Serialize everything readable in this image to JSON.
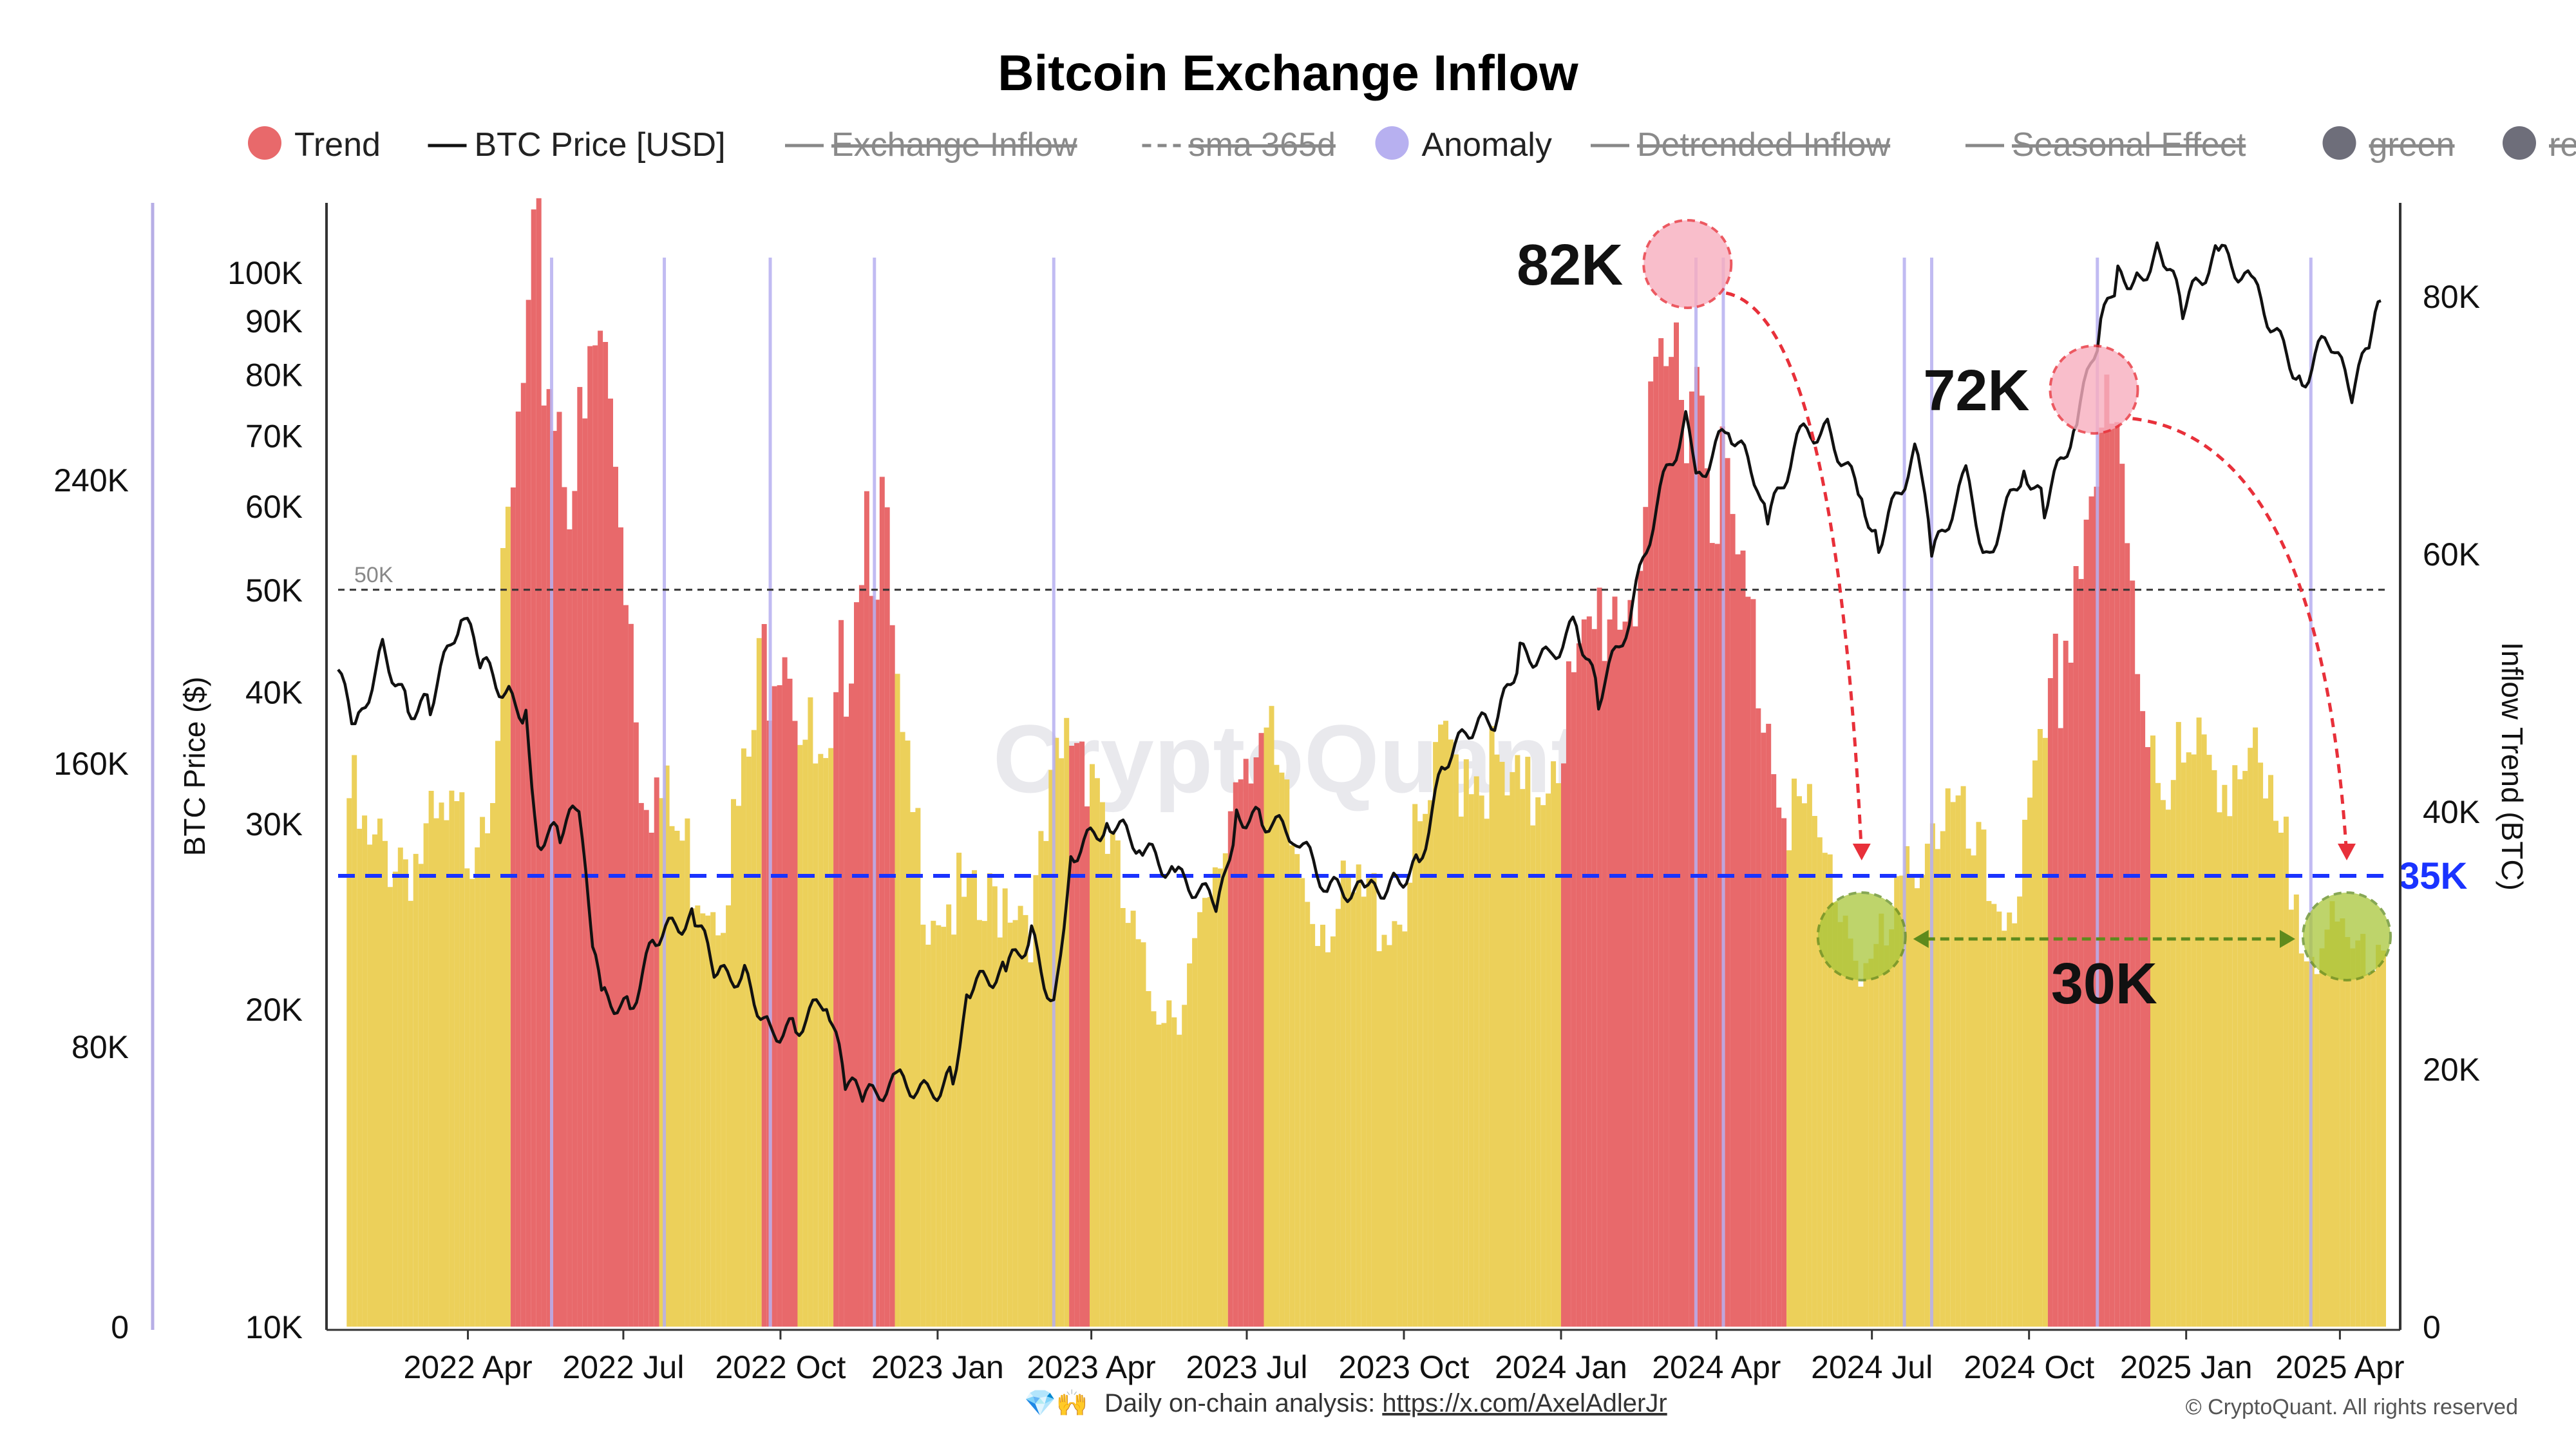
{
  "chart_data": {
    "type": "bar",
    "title": "Bitcoin Exchange Inflow",
    "legend": [
      {
        "label": "Trend",
        "style": "dot",
        "color": "#e8696b",
        "active": true
      },
      {
        "label": "BTC Price [USD]",
        "style": "line",
        "color": "#111111",
        "active": true
      },
      {
        "label": "Exchange Inflow",
        "style": "line",
        "color": "#888888",
        "active": false
      },
      {
        "label": "sma 365d",
        "style": "dash",
        "color": "#888888",
        "active": false
      },
      {
        "label": "Anomaly",
        "style": "dot",
        "color": "#b7b0f0",
        "active": true
      },
      {
        "label": "Detrended Inflow",
        "style": "line",
        "color": "#888888",
        "active": false
      },
      {
        "label": "Seasonal Effect",
        "style": "line",
        "color": "#888888",
        "active": false
      },
      {
        "label": "green",
        "style": "dot",
        "color": "#6e6e7a",
        "active": false
      },
      {
        "label": "red",
        "style": "dot",
        "color": "#6e6e7a",
        "active": false
      }
    ],
    "left_axis_outer": {
      "ticks": [
        "240K",
        "160K",
        "80K",
        "0"
      ],
      "values": [
        240000,
        160000,
        80000,
        0
      ]
    },
    "left_axis_price": {
      "label": "BTC Price ($)",
      "scale": "log",
      "ticks": [
        "100K",
        "90K",
        "80K",
        "70K",
        "60K",
        "50K",
        "40K",
        "30K",
        "20K",
        "10K"
      ],
      "values": [
        100000,
        90000,
        80000,
        70000,
        60000,
        50000,
        40000,
        30000,
        20000,
        10000
      ]
    },
    "right_axis": {
      "label": "Inflow Trend (BTC)",
      "range": [
        0,
        87000
      ],
      "ticks": [
        "80K",
        "60K",
        "40K",
        "20K",
        "0"
      ],
      "values": [
        80000,
        60000,
        40000,
        20000,
        0
      ]
    },
    "x_axis": {
      "ticks": [
        "2022 Apr",
        "2022 Jul",
        "2022 Oct",
        "2023 Jan",
        "2023 Apr",
        "2023 Jul",
        "2023 Oct",
        "2024 Jan",
        "2024 Apr",
        "2024 Jul",
        "2024 Oct",
        "2025 Jan",
        "2025 Apr"
      ],
      "dates": [
        "2022-04-01",
        "2022-07-01",
        "2022-10-01",
        "2023-01-01",
        "2023-04-01",
        "2023-07-01",
        "2023-10-01",
        "2024-01-01",
        "2024-04-01",
        "2024-07-01",
        "2024-10-01",
        "2025-01-01",
        "2025-04-01"
      ]
    },
    "inflow_trend_series": {
      "name": "Exchange Inflow Trend",
      "normal_color": "#ecd05a",
      "high_color": "#e8696b",
      "points": [
        [
          "2022-01-15",
          46000
        ],
        [
          "2022-02-01",
          38000
        ],
        [
          "2022-02-15",
          40000
        ],
        [
          "2022-03-01",
          39000
        ],
        [
          "2022-03-15",
          40000
        ],
        [
          "2022-04-01",
          41000
        ],
        [
          "2022-04-15",
          49000
        ],
        [
          "2022-05-01",
          75000
        ],
        [
          "2022-05-10",
          84000
        ],
        [
          "2022-05-25",
          75000
        ],
        [
          "2022-06-05",
          70000
        ],
        [
          "2022-06-15",
          82000
        ],
        [
          "2022-06-28",
          70000
        ],
        [
          "2022-07-10",
          48000
        ],
        [
          "2022-07-25",
          42000
        ],
        [
          "2022-08-10",
          38000
        ],
        [
          "2022-08-25",
          36000
        ],
        [
          "2022-09-10",
          45000
        ],
        [
          "2022-09-20",
          55000
        ],
        [
          "2022-10-01",
          61000
        ],
        [
          "2022-10-15",
          48000
        ],
        [
          "2022-10-28",
          42000
        ],
        [
          "2022-11-08",
          58000
        ],
        [
          "2022-11-18",
          70000
        ],
        [
          "2022-11-28",
          66000
        ],
        [
          "2022-12-10",
          45000
        ],
        [
          "2022-12-25",
          36000
        ],
        [
          "2023-01-10",
          35000
        ],
        [
          "2023-01-25",
          33000
        ],
        [
          "2023-02-10",
          37000
        ],
        [
          "2023-02-25",
          34000
        ],
        [
          "2023-03-10",
          44000
        ],
        [
          "2023-03-20",
          50000
        ],
        [
          "2023-04-01",
          48000
        ],
        [
          "2023-04-15",
          36000
        ],
        [
          "2023-05-01",
          28000
        ],
        [
          "2023-05-20",
          27000
        ],
        [
          "2023-06-10",
          34000
        ],
        [
          "2023-06-25",
          48000
        ],
        [
          "2023-07-05",
          51000
        ],
        [
          "2023-07-20",
          42000
        ],
        [
          "2023-08-05",
          36000
        ],
        [
          "2023-08-20",
          34000
        ],
        [
          "2023-09-10",
          35000
        ],
        [
          "2023-09-25",
          34000
        ],
        [
          "2023-10-10",
          40000
        ],
        [
          "2023-10-25",
          47000
        ],
        [
          "2023-11-10",
          48000
        ],
        [
          "2023-11-25",
          44000
        ],
        [
          "2023-12-10",
          42000
        ],
        [
          "2023-12-25",
          49000
        ],
        [
          "2024-01-10",
          52000
        ],
        [
          "2024-01-25",
          60000
        ],
        [
          "2024-02-10",
          62000
        ],
        [
          "2024-02-25",
          72000
        ],
        [
          "2024-03-05",
          79000
        ],
        [
          "2024-03-15",
          82000
        ],
        [
          "2024-03-28",
          74000
        ],
        [
          "2024-04-10",
          63000
        ],
        [
          "2024-04-25",
          54000
        ],
        [
          "2024-05-10",
          45000
        ],
        [
          "2024-05-25",
          40000
        ],
        [
          "2024-06-10",
          36000
        ],
        [
          "2024-06-25",
          30000
        ],
        [
          "2024-07-10",
          31000
        ],
        [
          "2024-07-25",
          40000
        ],
        [
          "2024-08-10",
          43000
        ],
        [
          "2024-08-25",
          39000
        ],
        [
          "2024-09-10",
          35000
        ],
        [
          "2024-09-25",
          37000
        ],
        [
          "2024-10-10",
          47000
        ],
        [
          "2024-10-20",
          56000
        ],
        [
          "2024-10-28",
          64000
        ],
        [
          "2024-11-08",
          72000
        ],
        [
          "2024-11-20",
          70000
        ],
        [
          "2024-12-05",
          53000
        ],
        [
          "2024-12-20",
          46000
        ],
        [
          "2025-01-05",
          45000
        ],
        [
          "2025-01-20",
          48000
        ],
        [
          "2025-02-05",
          46000
        ],
        [
          "2025-02-20",
          40000
        ],
        [
          "2025-03-05",
          36000
        ],
        [
          "2025-03-20",
          32000
        ],
        [
          "2025-04-05",
          30000
        ],
        [
          "2025-04-20",
          33000
        ]
      ],
      "high_periods": [
        [
          "2022-04-25",
          "2022-07-20"
        ],
        [
          "2022-09-20",
          "2022-10-10"
        ],
        [
          "2022-11-01",
          "2022-12-05"
        ],
        [
          "2023-03-18",
          "2023-03-28"
        ],
        [
          "2023-06-20",
          "2023-07-08"
        ],
        [
          "2024-01-01",
          "2024-05-10"
        ],
        [
          "2024-10-10",
          "2024-12-10"
        ]
      ]
    },
    "anomalies": [
      "2022-05-20",
      "2022-07-25",
      "2022-09-25",
      "2022-11-25",
      "2023-03-10",
      "2024-03-20",
      "2024-04-05",
      "2024-07-20",
      "2024-08-05",
      "2024-11-10",
      "2025-03-15"
    ],
    "btc_price_series": {
      "name": "BTC Price [USD]",
      "points": [
        [
          "2022-01-15",
          42000
        ],
        [
          "2022-01-25",
          36500
        ],
        [
          "2022-02-10",
          44000
        ],
        [
          "2022-02-25",
          38500
        ],
        [
          "2022-03-10",
          39000
        ],
        [
          "2022-03-28",
          47500
        ],
        [
          "2022-04-10",
          42500
        ],
        [
          "2022-04-25",
          39500
        ],
        [
          "2022-05-05",
          38000
        ],
        [
          "2022-05-12",
          29000
        ],
        [
          "2022-05-25",
          29500
        ],
        [
          "2022-06-05",
          31000
        ],
        [
          "2022-06-13",
          22500
        ],
        [
          "2022-06-20",
          20500
        ],
        [
          "2022-07-05",
          20000
        ],
        [
          "2022-07-20",
          23500
        ],
        [
          "2022-08-12",
          24500
        ],
        [
          "2022-08-25",
          21500
        ],
        [
          "2022-09-10",
          21500
        ],
        [
          "2022-09-25",
          19000
        ],
        [
          "2022-10-10",
          19200
        ],
        [
          "2022-10-28",
          20500
        ],
        [
          "2022-11-08",
          17000
        ],
        [
          "2022-11-20",
          16500
        ],
        [
          "2022-12-10",
          17100
        ],
        [
          "2022-12-28",
          16600
        ],
        [
          "2023-01-10",
          17300
        ],
        [
          "2023-01-20",
          21000
        ],
        [
          "2023-02-10",
          21800
        ],
        [
          "2023-02-25",
          23500
        ],
        [
          "2023-03-10",
          20000
        ],
        [
          "2023-03-20",
          28000
        ],
        [
          "2023-04-12",
          30200
        ],
        [
          "2023-05-01",
          28500
        ],
        [
          "2023-05-20",
          26800
        ],
        [
          "2023-06-15",
          25200
        ],
        [
          "2023-06-25",
          30500
        ],
        [
          "2023-07-10",
          30300
        ],
        [
          "2023-07-30",
          29300
        ],
        [
          "2023-08-17",
          26100
        ],
        [
          "2023-09-10",
          25800
        ],
        [
          "2023-09-25",
          26300
        ],
        [
          "2023-10-10",
          27500
        ],
        [
          "2023-10-25",
          34500
        ],
        [
          "2023-11-10",
          37000
        ],
        [
          "2023-11-25",
          37800
        ],
        [
          "2023-12-08",
          43500
        ],
        [
          "2023-12-25",
          43000
        ],
        [
          "2024-01-10",
          46500
        ],
        [
          "2024-01-23",
          39500
        ],
        [
          "2024-02-10",
          47000
        ],
        [
          "2024-02-28",
          62000
        ],
        [
          "2024-03-14",
          72000
        ],
        [
          "2024-03-22",
          64000
        ],
        [
          "2024-04-08",
          71500
        ],
        [
          "2024-04-25",
          63500
        ],
        [
          "2024-05-01",
          58000
        ],
        [
          "2024-05-20",
          70000
        ],
        [
          "2024-06-05",
          71000
        ],
        [
          "2024-06-25",
          61000
        ],
        [
          "2024-07-05",
          55500
        ],
        [
          "2024-07-28",
          68500
        ],
        [
          "2024-08-05",
          53500
        ],
        [
          "2024-08-25",
          64000
        ],
        [
          "2024-09-06",
          53500
        ],
        [
          "2024-09-28",
          65500
        ],
        [
          "2024-10-10",
          60000
        ],
        [
          "2024-10-29",
          72500
        ],
        [
          "2024-11-12",
          89000
        ],
        [
          "2024-11-22",
          99000
        ],
        [
          "2024-12-05",
          98500
        ],
        [
          "2024-12-17",
          106000
        ],
        [
          "2024-12-30",
          92500
        ],
        [
          "2025-01-20",
          105000
        ],
        [
          "2025-02-10",
          96500
        ],
        [
          "2025-02-27",
          84500
        ],
        [
          "2025-03-10",
          78500
        ],
        [
          "2025-03-25",
          87500
        ],
        [
          "2025-04-08",
          76500
        ],
        [
          "2025-04-20",
          87500
        ],
        [
          "2025-04-25",
          94000
        ]
      ]
    },
    "sma_reference": {
      "value": 50000,
      "label": "50K"
    },
    "threshold_line": {
      "value": 35000,
      "label": "35K",
      "color": "#1a33ff"
    },
    "annotations": [
      {
        "text": "82K",
        "date": "2024-03-15",
        "value": 82000,
        "kind": "peak"
      },
      {
        "text": "72K",
        "date": "2024-11-08",
        "value": 72000,
        "kind": "peak"
      },
      {
        "text": "30K",
        "kind": "trough-pair",
        "dates": [
          "2024-06-25",
          "2025-04-05"
        ],
        "value": 30000
      }
    ],
    "watermark": "CryptoQuant"
  },
  "footer": {
    "emoji": "💎🙌",
    "label": "Daily on-chain analysis: ",
    "link": "https://x.com/AxelAdlerJr",
    "copyright": "© CryptoQuant. All rights reserved"
  }
}
